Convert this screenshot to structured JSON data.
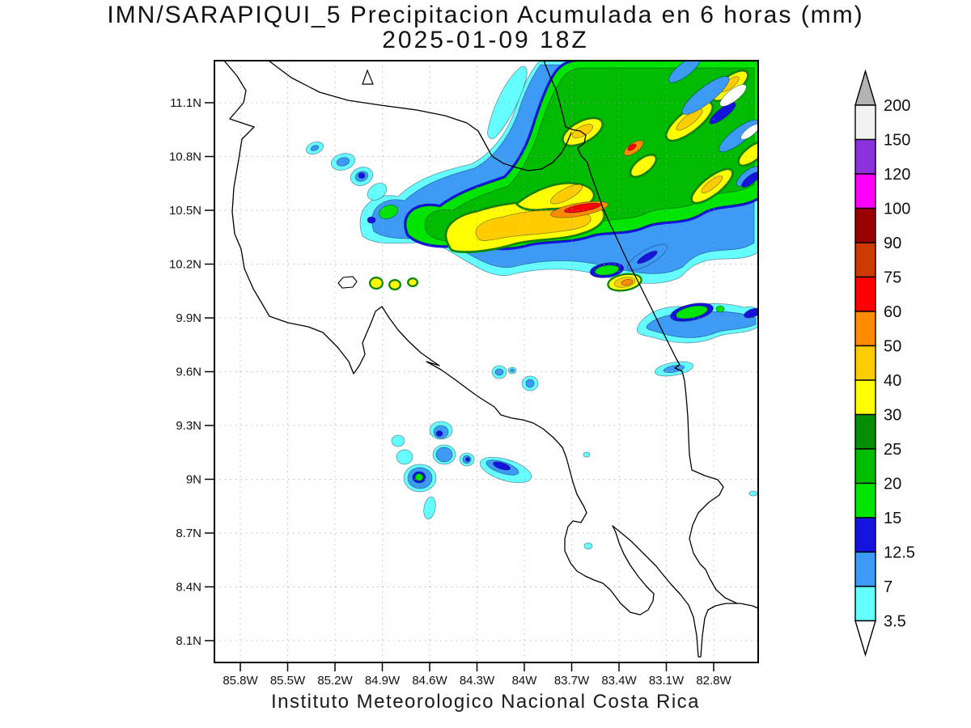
{
  "header": {
    "title_line1": "IMN/SARAPIQUI_5 Precipitacion Acumulada en 6 horas (mm)",
    "title_line2": "2025-01-09 18Z"
  },
  "footer": {
    "credit": "Instituto Meteorologico Nacional Costa Rica"
  },
  "chart_data": {
    "type": "heatmap",
    "subtype": "filled-contour-precipitation-map",
    "title": "IMN/SARAPIQUI_5 Precipitacion Acumulada en 6 horas (mm)",
    "valid_time": "2025-01-09 18Z",
    "units": "mm",
    "region_depicted": "Costa Rica and southern Nicaragua",
    "grid": "dotted",
    "legend_position": "right",
    "x_axis": {
      "tick_labels": [
        "85.8W",
        "85.5W",
        "85.2W",
        "84.9W",
        "84.6W",
        "84.3W",
        "84W",
        "83.7W",
        "83.4W",
        "83.1W",
        "82.8W"
      ]
    },
    "y_axis": {
      "tick_labels": [
        "11.1N",
        "10.8N",
        "10.5N",
        "10.2N",
        "9.9N",
        "9.6N",
        "9.3N",
        "9N",
        "8.7N",
        "8.4N",
        "8.1N"
      ]
    },
    "colorbar": {
      "tick_labels_top_to_bottom": [
        "200",
        "150",
        "120",
        "100",
        "90",
        "75",
        "60",
        "50",
        "40",
        "30",
        "25",
        "20",
        "15",
        "12.5",
        "7",
        "3.5"
      ],
      "over_arrow_color": "#b3b3b3",
      "under_arrow_color": "#ffffff",
      "bands_low_to_high": [
        {
          "from": 3.5,
          "to": 7,
          "color": "#66ffff"
        },
        {
          "from": 7,
          "to": 12.5,
          "color": "#3d9bf5"
        },
        {
          "from": 12.5,
          "to": 15,
          "color": "#1414dd"
        },
        {
          "from": 15,
          "to": 20,
          "color": "#00e400"
        },
        {
          "from": 20,
          "to": 25,
          "color": "#00bb00"
        },
        {
          "from": 25,
          "to": 30,
          "color": "#068e06"
        },
        {
          "from": 30,
          "to": 40,
          "color": "#ffff00"
        },
        {
          "from": 40,
          "to": 50,
          "color": "#ffcc00"
        },
        {
          "from": 50,
          "to": 60,
          "color": "#ff8c00"
        },
        {
          "from": 60,
          "to": 75,
          "color": "#ff0000"
        },
        {
          "from": 75,
          "to": 90,
          "color": "#cc3a00"
        },
        {
          "from": 90,
          "to": 100,
          "color": "#990000"
        },
        {
          "from": 100,
          "to": 120,
          "color": "#ff00ff"
        },
        {
          "from": 120,
          "to": 150,
          "color": "#8c32dc"
        },
        {
          "from": 150,
          "to": 200,
          "color": "#f2f2f2"
        }
      ]
    },
    "precip_features": [
      {
        "area": "Main SW-NE band over northern Costa Rica / Caribbean slope, ~84.9W-82.6W, 10.1N-11.3N",
        "max_band_mm": "60-75",
        "notes": "wide yellow/gold cores 30-50 mm; red streak near 83.6W 10.47N; orange-red cell near 83.3W 10.85N"
      },
      {
        "area": "Small cells ~85.3W-85.0W near 10.8N",
        "max_band_mm": "12.5-15"
      },
      {
        "area": "Cluster ~84.7W-84.2W, 8.9N-9.25N",
        "max_band_mm": "15-20",
        "notes": "small green core embedded in blue/cyan cells"
      },
      {
        "area": "Band along ~9.9N from 83.25W to 82.6W",
        "max_band_mm": "15-20",
        "notes": "two green cores inside blue/cyan band"
      },
      {
        "area": "Isolated dots ~84.15W 9.55N",
        "max_band_mm": "7-12.5"
      }
    ]
  }
}
